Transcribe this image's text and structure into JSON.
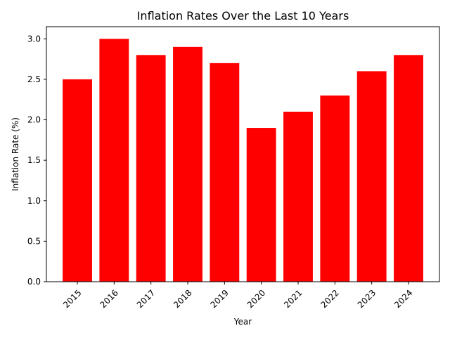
{
  "chart_data": {
    "type": "bar",
    "title": "Inflation Rates Over the Last 10 Years",
    "xlabel": "Year",
    "ylabel": "Inflation Rate (%)",
    "categories": [
      "2015",
      "2016",
      "2017",
      "2018",
      "2019",
      "2020",
      "2021",
      "2022",
      "2023",
      "2024"
    ],
    "values": [
      2.5,
      3.0,
      2.8,
      2.9,
      2.7,
      1.9,
      2.1,
      2.3,
      2.6,
      2.8
    ],
    "ylim": [
      0,
      3.15
    ],
    "yticks": [
      0.0,
      0.5,
      1.0,
      1.5,
      2.0,
      2.5,
      3.0
    ],
    "ytick_labels": [
      "0.0",
      "0.5",
      "1.0",
      "1.5",
      "2.0",
      "2.5",
      "3.0"
    ],
    "bar_color": "#ff0000",
    "grid": false,
    "legend": "none"
  }
}
